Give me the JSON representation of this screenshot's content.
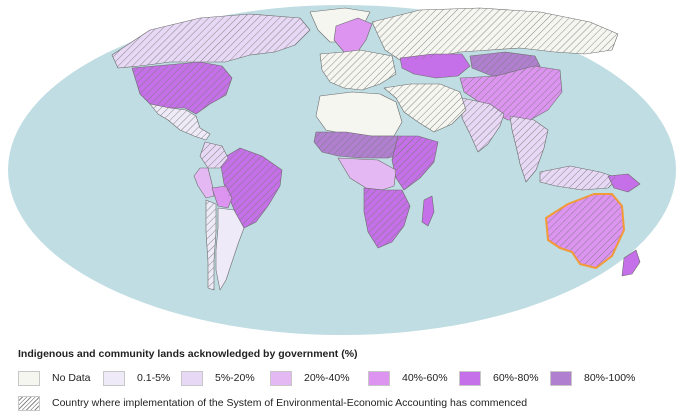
{
  "legend": {
    "title": "Indigenous and community lands acknowledged by government (%)",
    "categories": [
      {
        "label": "No Data",
        "color": "#f6f6f1"
      },
      {
        "label": "0.1-5%",
        "color": "#eeeaf8"
      },
      {
        "label": "5%-20%",
        "color": "#e7d8f5"
      },
      {
        "label": "20%-40%",
        "color": "#e4b8f3"
      },
      {
        "label": "40%-60%",
        "color": "#dc94f0"
      },
      {
        "label": "60%-80%",
        "color": "#c56fe8"
      },
      {
        "label": "80%-100%",
        "color": "#b17fd0"
      }
    ],
    "hatch_label": "Country where implementation of the System of Environmental-Economic Accounting has commenced"
  },
  "colors": {
    "ocean": "#bfdde2",
    "land_outline": "#6b6b6b",
    "hatch": "#7d7d7d",
    "highlight_outline": "#f29a38"
  },
  "regions": [
    {
      "name": "canada",
      "category": 2,
      "hatched": true
    },
    {
      "name": "united-states",
      "category": 5,
      "hatched": true
    },
    {
      "name": "mexico",
      "category": 1,
      "hatched": true
    },
    {
      "name": "greenland",
      "category": 0,
      "hatched": false
    },
    {
      "name": "brazil",
      "category": 5,
      "hatched": true
    },
    {
      "name": "colombia",
      "category": 2,
      "hatched": true
    },
    {
      "name": "peru",
      "category": 3,
      "hatched": false
    },
    {
      "name": "bolivia",
      "category": 4,
      "hatched": false
    },
    {
      "name": "argentina",
      "category": 1,
      "hatched": false
    },
    {
      "name": "chile",
      "category": 1,
      "hatched": true
    },
    {
      "name": "scandinavia",
      "category": 4,
      "hatched": false
    },
    {
      "name": "europe",
      "category": 0,
      "hatched": true
    },
    {
      "name": "russia",
      "category": 0,
      "hatched": true
    },
    {
      "name": "kazakhstan",
      "category": 5,
      "hatched": false
    },
    {
      "name": "mongolia",
      "category": 6,
      "hatched": true
    },
    {
      "name": "china",
      "category": 4,
      "hatched": true
    },
    {
      "name": "india",
      "category": 2,
      "hatched": true
    },
    {
      "name": "middle-east",
      "category": 0,
      "hatched": true
    },
    {
      "name": "north-africa",
      "category": 0,
      "hatched": false
    },
    {
      "name": "sahel",
      "category": 6,
      "hatched": true
    },
    {
      "name": "east-africa",
      "category": 5,
      "hatched": true
    },
    {
      "name": "central-africa",
      "category": 3,
      "hatched": false
    },
    {
      "name": "southern-africa",
      "category": 5,
      "hatched": true
    },
    {
      "name": "madagascar",
      "category": 5,
      "hatched": false
    },
    {
      "name": "southeast-asia",
      "category": 2,
      "hatched": true
    },
    {
      "name": "indonesia",
      "category": 2,
      "hatched": true
    },
    {
      "name": "papua-new-guinea",
      "category": 5,
      "hatched": false
    },
    {
      "name": "australia",
      "category": 4,
      "hatched": true,
      "highlighted": true
    },
    {
      "name": "new-zealand",
      "category": 5,
      "hatched": false
    }
  ]
}
